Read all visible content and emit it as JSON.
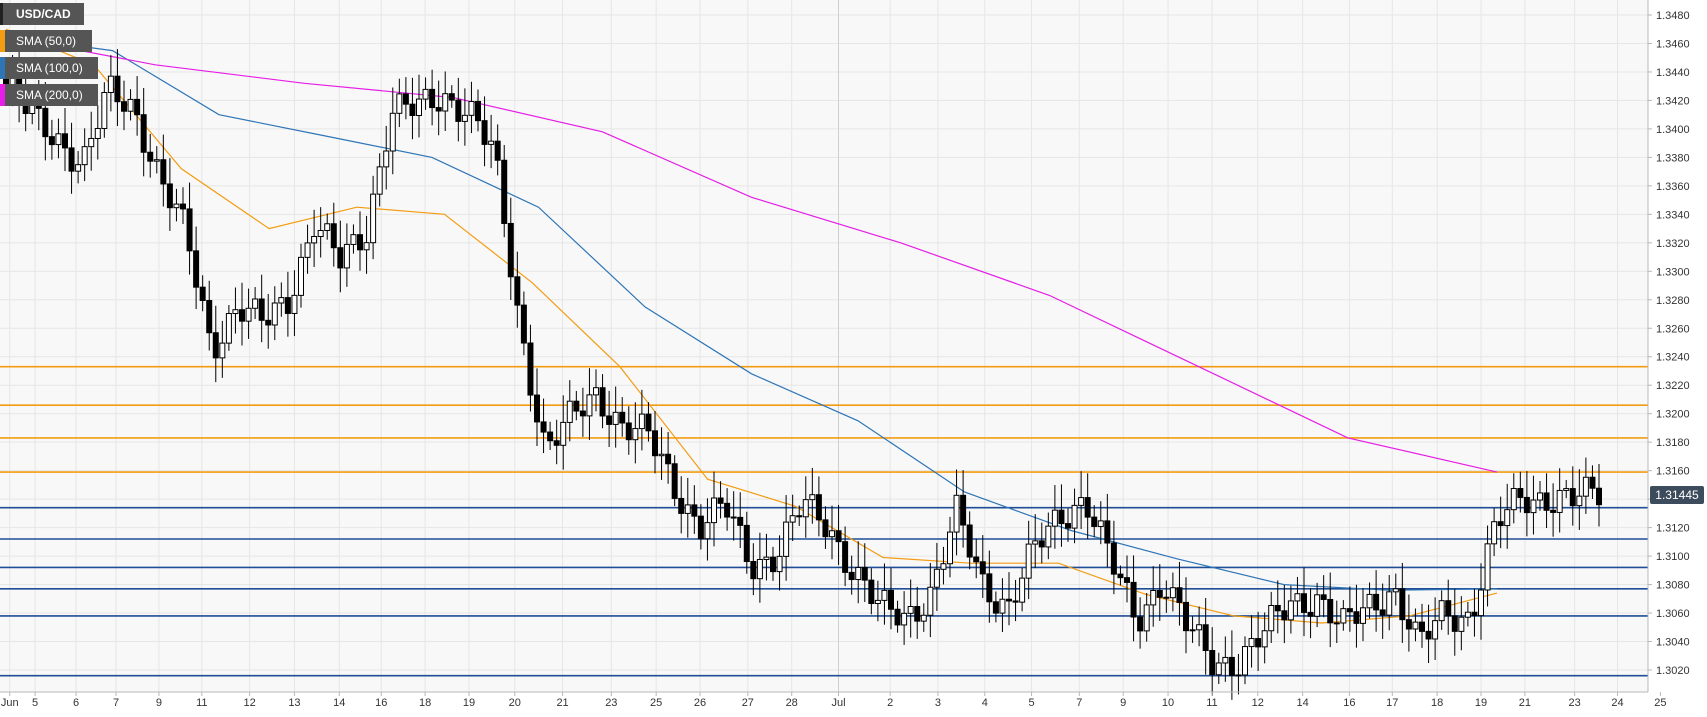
{
  "window": {
    "symbol": "USD/CAD"
  },
  "legend": [
    {
      "label": "SMA (50,0)",
      "color": "#f39c12"
    },
    {
      "label": "SMA (100,0)",
      "color": "#2e75b6"
    },
    {
      "label": "SMA (200,0)",
      "color": "#e61ee6"
    }
  ],
  "price_badge": "1.31445",
  "colors": {
    "resistance": "#f39c12",
    "support": "#1f4e96",
    "badge_bg": "#3d4c5c",
    "grid": "#e6e6e6",
    "plot_bg": "#f8f8f8"
  },
  "chart_data": {
    "type": "candlestick",
    "title": "USD/CAD",
    "ylim": [
      1.3013,
      1.3493
    ],
    "y_ticks": [
      "1.3020",
      "1.3040",
      "1.3060",
      "1.3080",
      "1.3100",
      "1.3120",
      "1.3140",
      "1.3160",
      "1.3180",
      "1.3200",
      "1.3220",
      "1.3240",
      "1.3260",
      "1.3280",
      "1.3300",
      "1.3320",
      "1.3340",
      "1.3360",
      "1.3380",
      "1.3400",
      "1.3420",
      "1.3440",
      "1.3460",
      "1.3480"
    ],
    "x_ticks": [
      "Jun",
      "5",
      "6",
      "7",
      "9",
      "11",
      "12",
      "13",
      "14",
      "16",
      "18",
      "19",
      "20",
      "21",
      "23",
      "25",
      "26",
      "27",
      "28",
      "Jul",
      "2",
      "3",
      "4",
      "5",
      "7",
      "9",
      "10",
      "11",
      "12",
      "14",
      "16",
      "17",
      "18",
      "19",
      "21",
      "23",
      "24",
      "25"
    ],
    "x_separator": "Jul",
    "last_price": 1.31445,
    "resistance_levels": [
      1.3233,
      1.3206,
      1.3183,
      1.3159
    ],
    "support_levels": [
      1.3134,
      1.3112,
      1.3092,
      1.3077,
      1.3058,
      1.3016
    ],
    "anchors": [
      1.343,
      1.3408,
      1.3395,
      1.3375,
      1.3425,
      1.3416,
      1.3365,
      1.3325,
      1.3248,
      1.3275,
      1.3262,
      1.3282,
      1.3335,
      1.3305,
      1.3328,
      1.3414,
      1.3412,
      1.3424,
      1.3415,
      1.338,
      1.3262,
      1.3175,
      1.3195,
      1.3215,
      1.3192,
      1.3183,
      1.315,
      1.3122,
      1.3133,
      1.3095,
      1.3102,
      1.3135,
      1.3122,
      1.309,
      1.3062,
      1.3058,
      1.3075,
      1.3128,
      1.3082,
      1.3065,
      1.3102,
      1.3128,
      1.3142,
      1.3095,
      1.3055,
      1.3085,
      1.3048,
      1.3025,
      1.3028,
      1.3045,
      1.3068,
      1.3072,
      1.3048,
      1.3065,
      1.3078,
      1.3035,
      1.3062,
      1.3058,
      1.312,
      1.3142,
      1.3142,
      1.3138,
      1.3145
    ],
    "series": [
      {
        "name": "SMA (50,0)",
        "values": [
          1.347,
          1.3445,
          1.3372,
          1.333,
          1.3345,
          1.334,
          1.3292,
          1.3233,
          1.3154,
          1.3135,
          1.3099,
          1.3095,
          1.3095,
          1.3073,
          1.3058,
          1.3053,
          1.3058,
          1.3074
        ]
      },
      {
        "name": "SMA (100,0)",
        "values": [
          1.3465,
          1.3455,
          1.341,
          1.3395,
          1.338,
          1.3345,
          1.3275,
          1.3228,
          1.3195,
          1.3145,
          1.3118,
          1.3098,
          1.308,
          1.3076,
          1.3077
        ]
      },
      {
        "name": "SMA (200,0)",
        "values": [
          1.3465,
          1.3445,
          1.3432,
          1.3422,
          1.3398,
          1.3352,
          1.332,
          1.3283,
          1.3233,
          1.3183,
          1.3159
        ]
      }
    ]
  }
}
